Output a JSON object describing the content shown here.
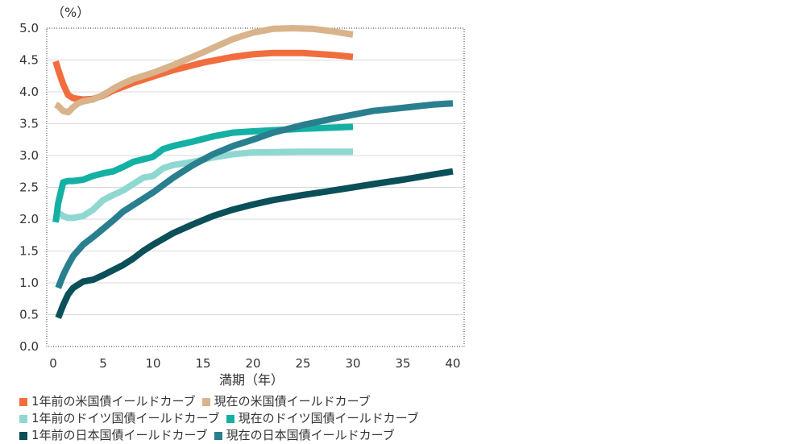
{
  "chart_data": {
    "type": "line",
    "title": "",
    "unit_label": "（%）",
    "xlabel": "満期（年）",
    "ylabel": "",
    "xlim": [
      0,
      40
    ],
    "ylim": [
      0,
      5
    ],
    "x_ticks": [
      "0",
      "5",
      "10",
      "15",
      "20",
      "25",
      "30",
      "35",
      "40"
    ],
    "y_ticks": [
      "0.0",
      "0.5",
      "1.0",
      "1.5",
      "2.0",
      "2.5",
      "3.0",
      "3.5",
      "4.0",
      "4.5",
      "5.0"
    ],
    "grid": "horizontal",
    "legend_position": "bottom",
    "series": [
      {
        "name": "1年前の米国債イールドカーブ",
        "color": "#f26d3d",
        "x": [
          0.25,
          0.5,
          1,
          1.5,
          2,
          3,
          4,
          5,
          6,
          7,
          8,
          10,
          12,
          15,
          18,
          20,
          22,
          25,
          28,
          30
        ],
        "y": [
          4.48,
          4.35,
          4.12,
          3.95,
          3.9,
          3.88,
          3.89,
          3.94,
          4.02,
          4.08,
          4.14,
          4.24,
          4.34,
          4.46,
          4.55,
          4.59,
          4.61,
          4.61,
          4.58,
          4.55
        ]
      },
      {
        "name": "現在の米国債イールドカーブ",
        "color": "#d9b38c",
        "x": [
          0.25,
          0.5,
          1,
          1.5,
          2,
          2.5,
          3,
          4,
          5,
          6,
          7,
          8,
          10,
          12,
          15,
          18,
          20,
          22,
          24,
          26,
          28,
          30
        ],
        "y": [
          3.8,
          3.78,
          3.7,
          3.68,
          3.76,
          3.82,
          3.85,
          3.88,
          3.95,
          4.05,
          4.13,
          4.2,
          4.3,
          4.42,
          4.62,
          4.83,
          4.93,
          4.99,
          5.0,
          4.99,
          4.95,
          4.9
        ]
      },
      {
        "name": "1年前のドイツ国債イールドカーブ",
        "color": "#8fd8d2",
        "x": [
          0.25,
          0.5,
          1,
          1.5,
          2,
          3,
          4,
          5,
          6,
          7,
          8,
          9,
          10,
          11,
          12,
          14,
          16,
          18,
          20,
          25,
          30
        ],
        "y": [
          2.12,
          2.1,
          2.05,
          2.02,
          2.02,
          2.05,
          2.15,
          2.3,
          2.38,
          2.45,
          2.55,
          2.65,
          2.68,
          2.8,
          2.85,
          2.9,
          2.97,
          3.02,
          3.05,
          3.06,
          3.06
        ]
      },
      {
        "name": "現在のドイツ国債イールドカーブ",
        "color": "#14b0a4",
        "x": [
          0.25,
          0.5,
          1,
          1.5,
          2,
          3,
          4,
          5,
          6,
          7,
          8,
          10,
          11,
          12,
          14,
          16,
          18,
          20,
          25,
          30
        ],
        "y": [
          1.95,
          2.25,
          2.58,
          2.6,
          2.6,
          2.62,
          2.68,
          2.72,
          2.75,
          2.82,
          2.9,
          2.98,
          3.1,
          3.15,
          3.22,
          3.3,
          3.36,
          3.38,
          3.42,
          3.45
        ]
      },
      {
        "name": "1年前の日本国債イールドカーブ",
        "color": "#0b4f59",
        "x": [
          0.5,
          1,
          1.5,
          2,
          3,
          4,
          5,
          6,
          7,
          8,
          9,
          10,
          12,
          14,
          16,
          18,
          20,
          22,
          25,
          28,
          30,
          32,
          35,
          38,
          40
        ],
        "y": [
          0.45,
          0.65,
          0.82,
          0.92,
          1.02,
          1.05,
          1.12,
          1.2,
          1.28,
          1.38,
          1.5,
          1.6,
          1.78,
          1.92,
          2.05,
          2.15,
          2.23,
          2.3,
          2.38,
          2.45,
          2.5,
          2.55,
          2.62,
          2.7,
          2.75
        ]
      },
      {
        "name": "現在の日本国債イールドカーブ",
        "color": "#2a7f8f",
        "x": [
          0.5,
          1,
          1.5,
          2,
          3,
          4,
          5,
          6,
          7,
          8,
          10,
          12,
          14,
          16,
          18,
          20,
          22,
          25,
          28,
          30,
          32,
          35,
          38,
          40
        ],
        "y": [
          0.92,
          1.12,
          1.28,
          1.42,
          1.6,
          1.72,
          1.85,
          1.98,
          2.12,
          2.22,
          2.42,
          2.65,
          2.85,
          3.02,
          3.15,
          3.25,
          3.36,
          3.48,
          3.58,
          3.64,
          3.7,
          3.75,
          3.8,
          3.82
        ]
      }
    ]
  }
}
